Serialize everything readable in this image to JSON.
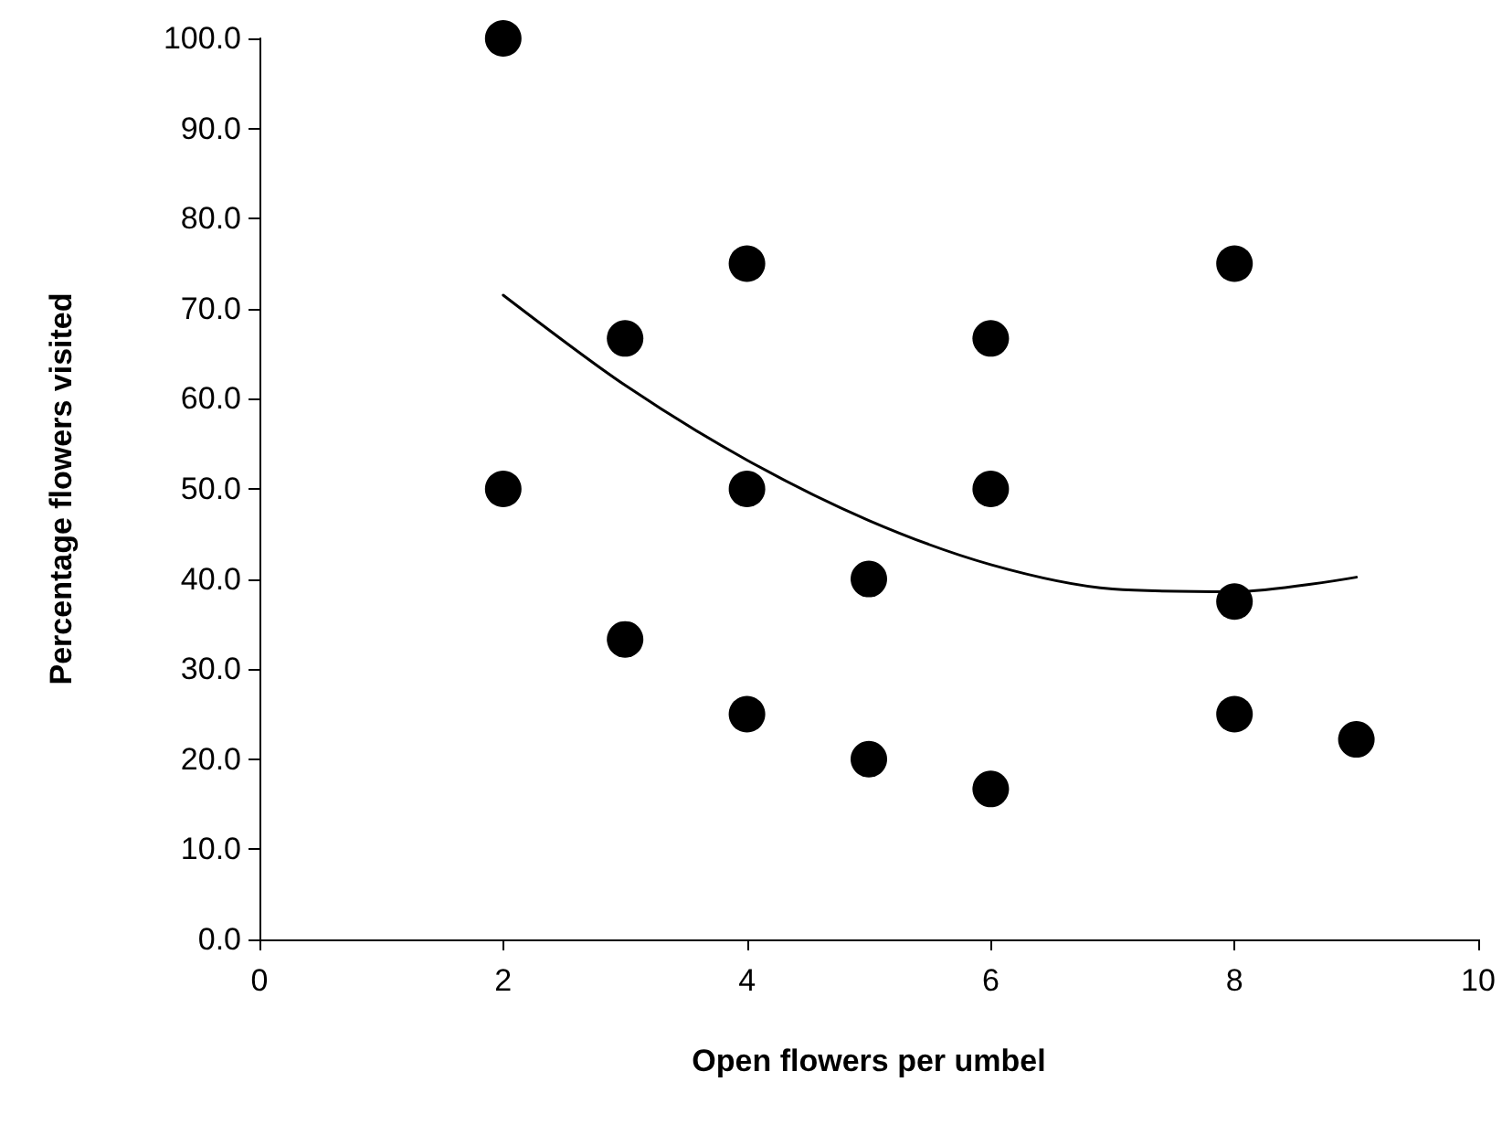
{
  "chart_data": {
    "type": "scatter",
    "xlabel": "Open flowers per umbel",
    "ylabel": "Percentage flowers visited",
    "xlim": [
      0,
      10
    ],
    "xticks": [
      0,
      2,
      4,
      6,
      8,
      10
    ],
    "ylim": [
      0,
      100
    ],
    "yticks": [
      {
        "value": 0,
        "label": "0.0"
      },
      {
        "value": 10,
        "label": "10.0"
      },
      {
        "value": 20,
        "label": "20.0"
      },
      {
        "value": 30,
        "label": "30.0"
      },
      {
        "value": 40,
        "label": "40.0"
      },
      {
        "value": 50,
        "label": "50.0"
      },
      {
        "value": 60,
        "label": "60.0"
      },
      {
        "value": 70,
        "label": "70.0"
      },
      {
        "value": 80,
        "label": "80.0"
      },
      {
        "value": 90,
        "label": "90.0"
      },
      {
        "value": 100,
        "label": "100.0"
      }
    ],
    "grid": false,
    "marker": "circle",
    "series": [
      {
        "color": "#000000",
        "x": [
          2,
          2,
          3,
          3,
          4,
          4,
          4,
          5,
          5,
          6,
          6,
          6,
          8,
          8,
          8,
          9
        ],
        "values": [
          100,
          50,
          66.7,
          33.3,
          75,
          50,
          25,
          40,
          20,
          66.7,
          50,
          16.7,
          75,
          37.5,
          25,
          22.2
        ]
      },
      {
        "type": "line",
        "color": "#000000",
        "marker": "none",
        "line_style": "solid",
        "x": [
          2,
          3,
          4,
          5,
          6,
          7,
          8,
          9
        ],
        "values": [
          71.5,
          61.5,
          53.2,
          46.5,
          41.6,
          38.9,
          38.6,
          40.2
        ]
      }
    ]
  }
}
